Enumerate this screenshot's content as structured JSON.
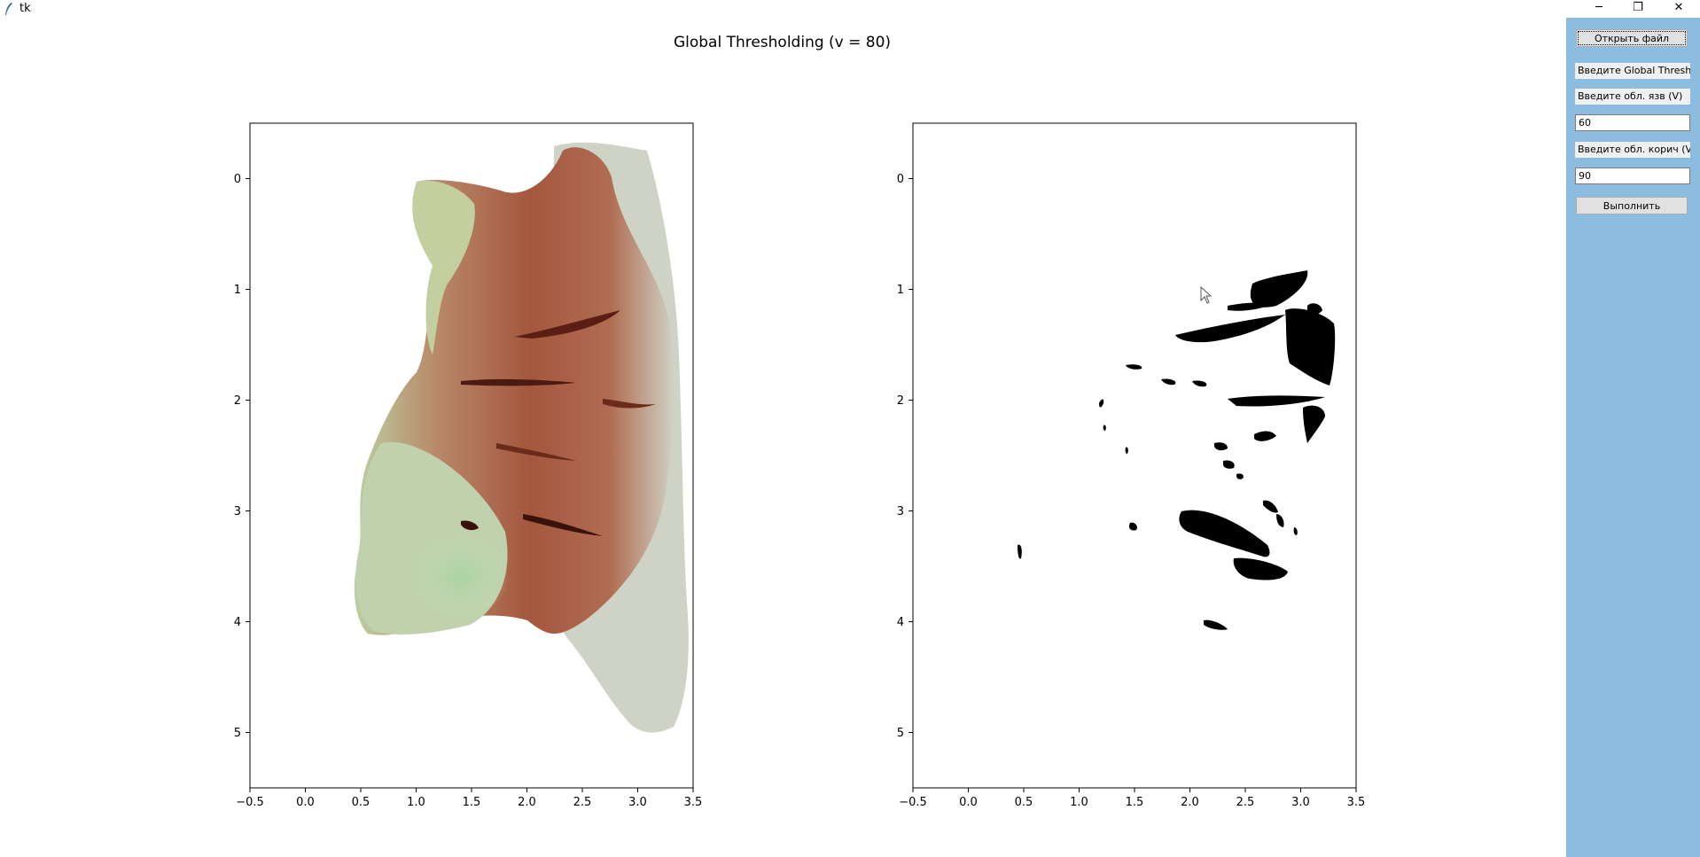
{
  "window": {
    "title": "tk",
    "minimize_glyph": "─",
    "restore_glyph": "❐",
    "close_glyph": "✕"
  },
  "figure": {
    "title": "Global Thresholding (v = 80)"
  },
  "axes": {
    "x_ticks": [
      "−0.5",
      "0.0",
      "0.5",
      "1.0",
      "1.5",
      "2.0",
      "2.5",
      "3.0",
      "3.5"
    ],
    "y_ticks": [
      "0",
      "1",
      "2",
      "3",
      "4",
      "5"
    ],
    "xlim": [
      -0.5,
      3.5
    ],
    "ylim": [
      5.5,
      -0.5
    ]
  },
  "left_plot": {
    "content": "tissue-photo-image"
  },
  "right_plot": {
    "content": "threshold-binary-mask"
  },
  "panel": {
    "open_button": "Открыть файл",
    "label_global": "Введите Global Thresh:",
    "label_ulcer": "Введите обл. язв (V)",
    "ulcer_value": "60",
    "label_brown": "Введите обл. корич (V)",
    "brown_value": "90",
    "run_button": "Выполнить"
  },
  "colors": {
    "panel_bg": "#8cbde0",
    "button_bg": "#e1e1e1"
  }
}
